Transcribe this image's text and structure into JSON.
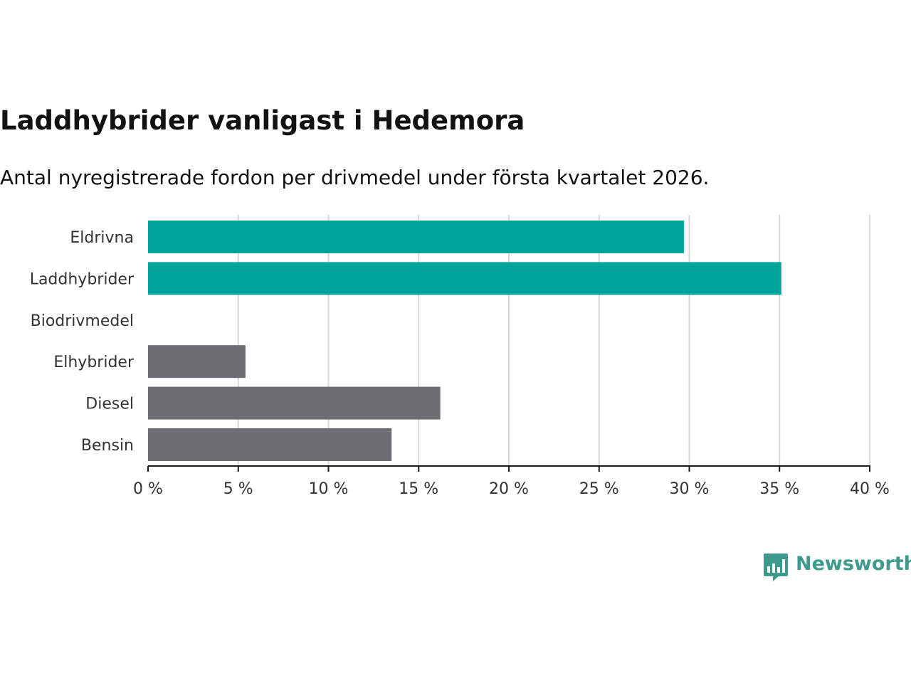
{
  "header": {
    "title": "Laddhybrider vanligast i Hedemora",
    "subtitle": "Antal nyregistrerade fordon per drivmedel under första kvartalet 2026."
  },
  "brand": {
    "name": "Newsworthy",
    "logo_icon": "newsworthy-bar-chart-icon",
    "color": "#3f9a8e"
  },
  "colors": {
    "highlight": "#00a398",
    "muted": "#6e6d73",
    "grid": "#d9d9d9",
    "axis": "#1a1a1a"
  },
  "chart_data": {
    "type": "bar",
    "orientation": "horizontal",
    "title": "Laddhybrider vanligast i Hedemora",
    "subtitle": "Antal nyregistrerade fordon per drivmedel under första kvartalet 2026.",
    "categories": [
      "Eldrivna",
      "Laddhybrider",
      "Biodrivmedel",
      "Elhybrider",
      "Diesel",
      "Bensin"
    ],
    "values": [
      29.7,
      35.1,
      0,
      5.4,
      16.2,
      13.5
    ],
    "highlighted": [
      true,
      true,
      false,
      false,
      false,
      false
    ],
    "xlim": [
      0,
      40
    ],
    "xticks": [
      0,
      5,
      10,
      15,
      20,
      25,
      30,
      35,
      40
    ],
    "xtick_labels": [
      "0 %",
      "5 %",
      "10 %",
      "15 %",
      "20 %",
      "25 %",
      "30 %",
      "35 %",
      "40 %"
    ],
    "xlabel": "",
    "ylabel": "",
    "grid": true,
    "legend": false
  }
}
